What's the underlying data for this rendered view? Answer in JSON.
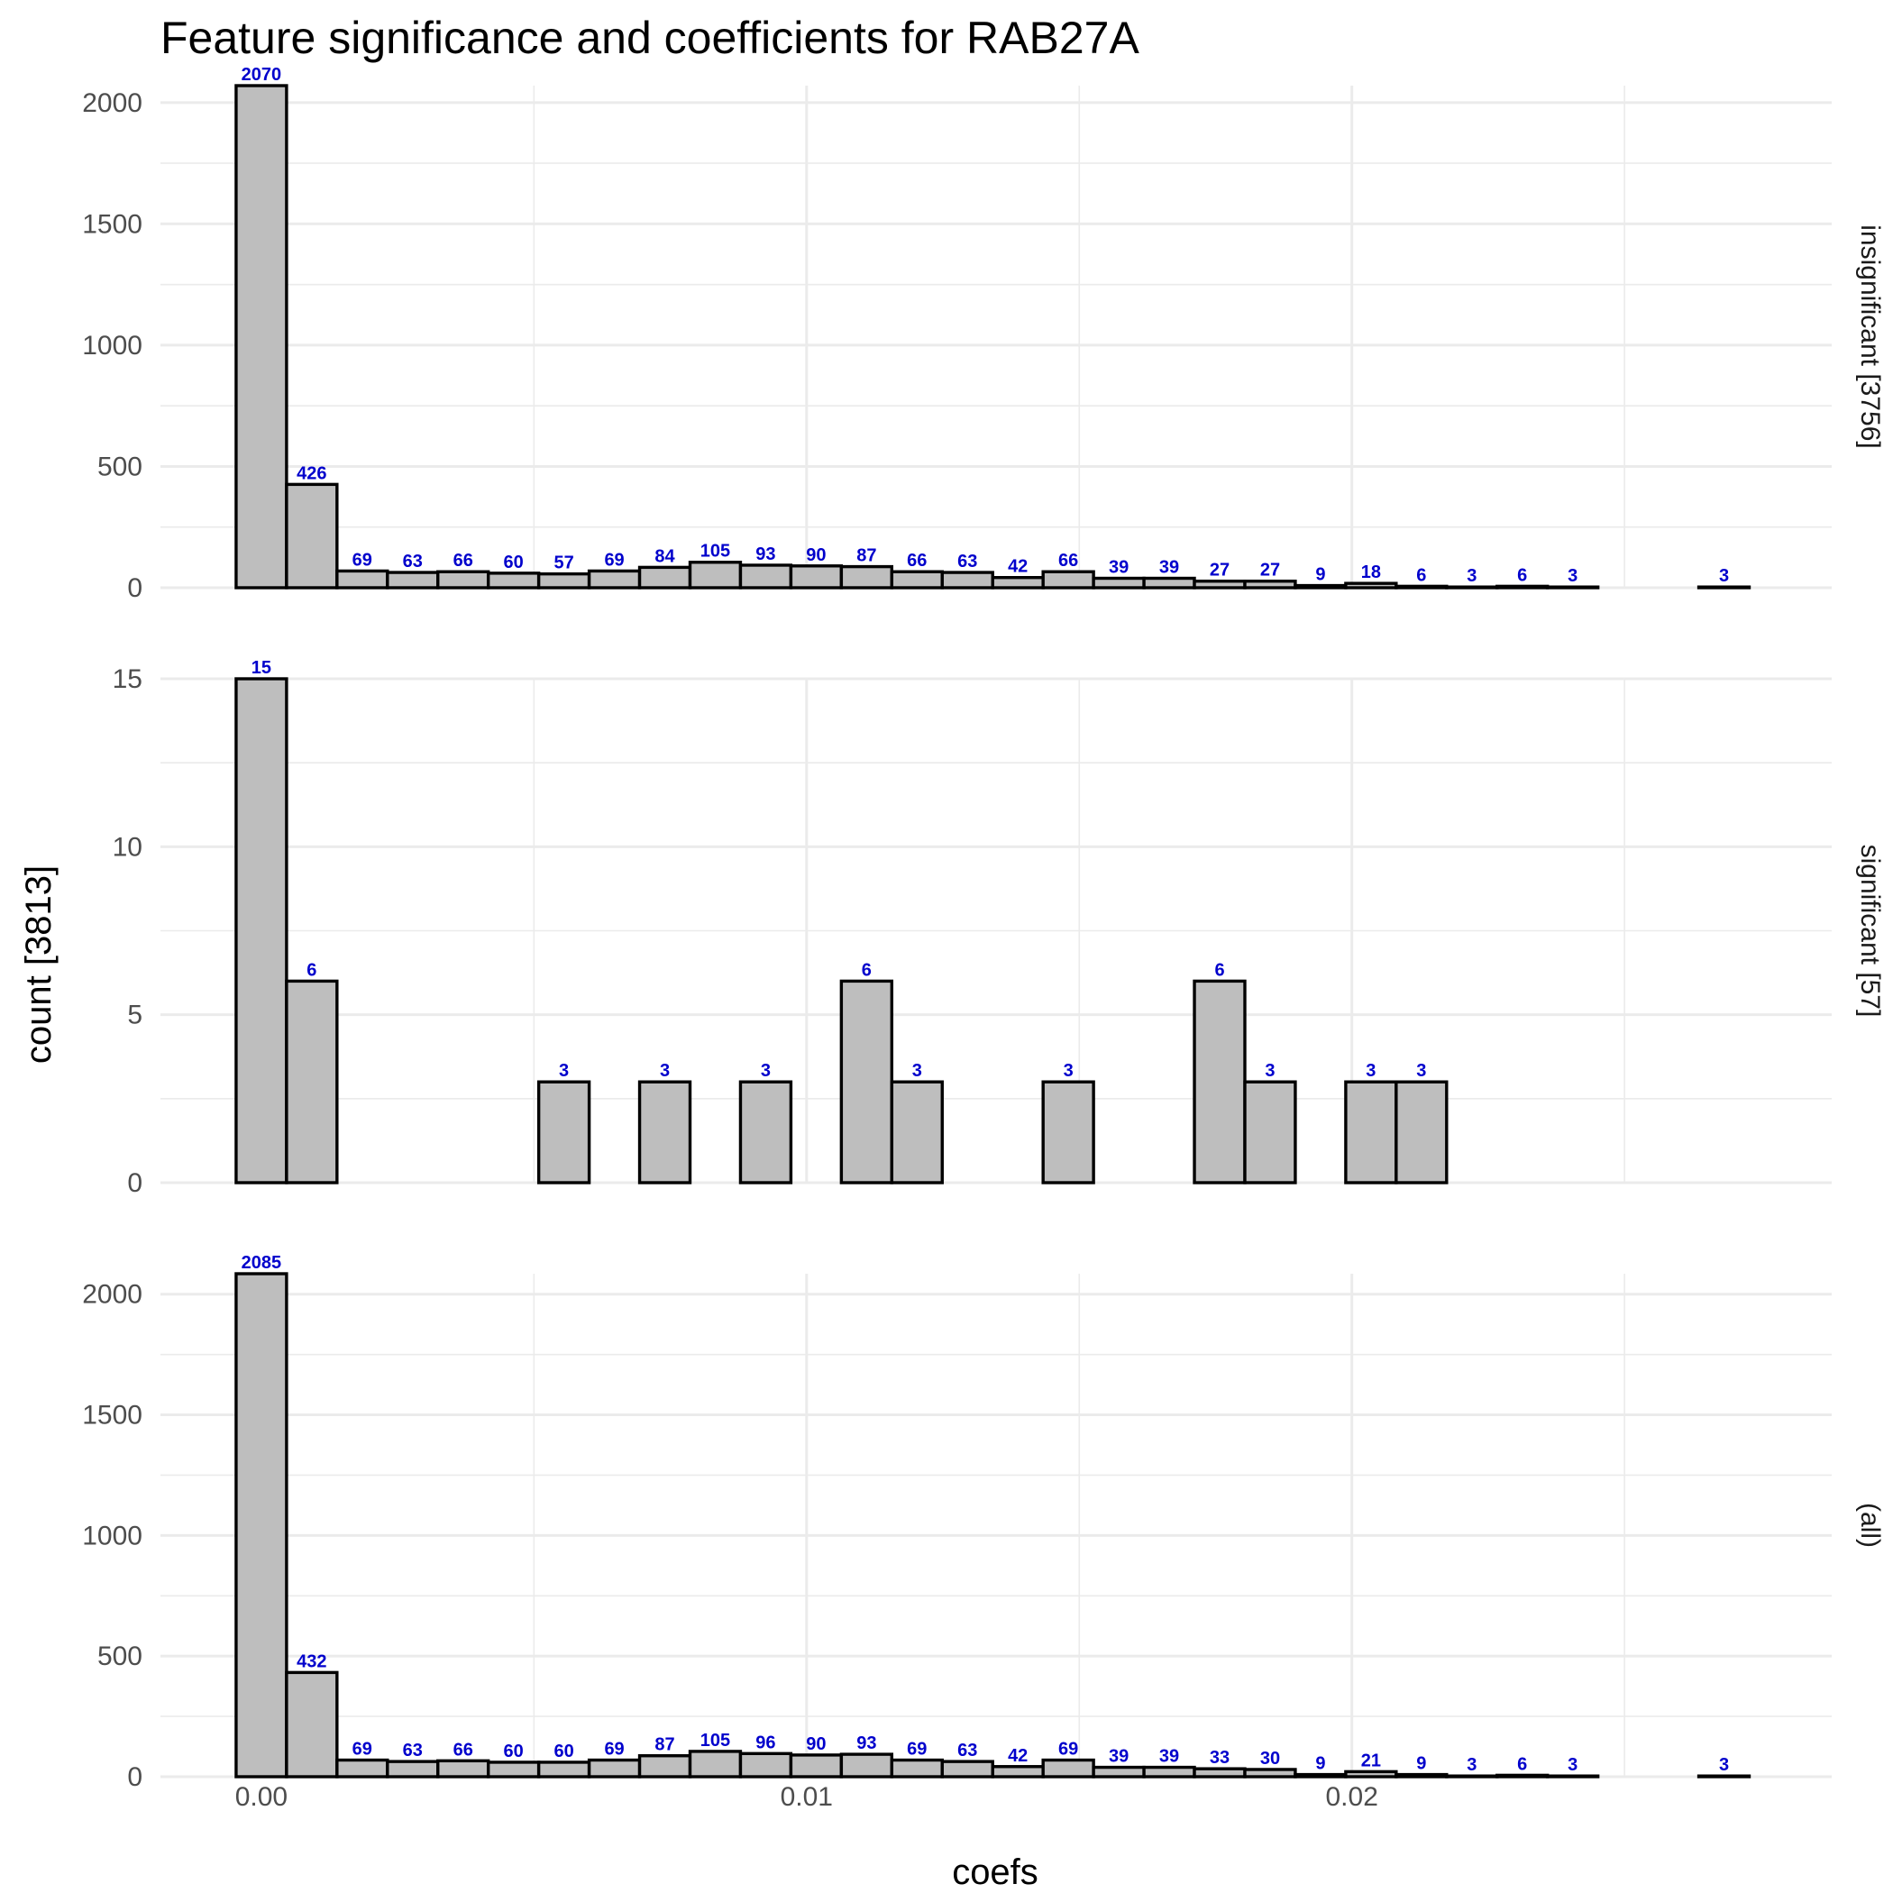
{
  "chart_data": {
    "type": "bar",
    "title": "Feature significance and coefficients for RAB27A",
    "xlabel": "coefs",
    "ylabel": "count [3813]",
    "x_ticks": [
      "0.00",
      "0.01",
      "0.02"
    ],
    "x_tick_values": [
      0.0,
      0.01,
      0.02
    ],
    "bin_width": 0.000925,
    "x_range": [
      -0.00185,
      0.0288
    ],
    "grid": true,
    "panels": [
      {
        "label": "insignificant [3756]",
        "ylim": [
          0,
          2070
        ],
        "y_ticks": [
          0,
          500,
          1000,
          1500,
          2000
        ],
        "bin_centers": [
          0.0,
          0.000925,
          0.00185,
          0.002775,
          0.0037,
          0.004625,
          0.00555,
          0.006475,
          0.0074,
          0.008325,
          0.00925,
          0.010175,
          0.0111,
          0.012025,
          0.01295,
          0.013875,
          0.0148,
          0.015725,
          0.01665,
          0.017575,
          0.0185,
          0.019425,
          0.02035,
          0.021275,
          0.0222,
          0.023125,
          0.02405,
          0.024975,
          0.0259,
          0.026825
        ],
        "values": [
          2070,
          426,
          69,
          63,
          66,
          60,
          57,
          69,
          84,
          105,
          93,
          90,
          87,
          66,
          63,
          42,
          66,
          39,
          39,
          27,
          27,
          9,
          18,
          6,
          3,
          6,
          3,
          0,
          0,
          3
        ],
        "labels": [
          "2070",
          "426",
          "69",
          "63",
          "66",
          "60",
          "57",
          "69",
          "84",
          "105",
          "93",
          "90",
          "87",
          "66",
          "63",
          "42",
          "66",
          "39",
          "39",
          "27",
          "27",
          "9",
          "18",
          "6",
          "3",
          "6",
          "3",
          "",
          "",
          "3"
        ]
      },
      {
        "label": "significant [57]",
        "ylim": [
          0,
          15
        ],
        "y_ticks": [
          0,
          5,
          10,
          15
        ],
        "bin_centers": [
          0.0,
          0.000925,
          0.00185,
          0.002775,
          0.0037,
          0.004625,
          0.00555,
          0.006475,
          0.0074,
          0.008325,
          0.00925,
          0.010175,
          0.0111,
          0.012025,
          0.01295,
          0.013875,
          0.0148,
          0.015725,
          0.01665,
          0.017575,
          0.0185,
          0.019425,
          0.02035,
          0.021275,
          0.0222,
          0.023125,
          0.02405,
          0.024975,
          0.0259,
          0.026825
        ],
        "values": [
          15,
          6,
          0,
          0,
          0,
          0,
          3,
          0,
          3,
          0,
          3,
          0,
          6,
          3,
          0,
          0,
          3,
          0,
          0,
          6,
          3,
          0,
          3,
          3,
          0,
          0,
          0,
          0,
          0,
          0
        ],
        "labels": [
          "15",
          "6",
          "",
          "",
          "",
          "",
          "3",
          "",
          "3",
          "",
          "3",
          "",
          "6",
          "3",
          "",
          "",
          "3",
          "",
          "",
          "6",
          "3",
          "",
          "3",
          "3",
          "",
          "",
          "",
          "",
          "",
          ""
        ]
      },
      {
        "label": "(all)",
        "ylim": [
          0,
          2085
        ],
        "y_ticks": [
          0,
          500,
          1000,
          1500,
          2000
        ],
        "bin_centers": [
          0.0,
          0.000925,
          0.00185,
          0.002775,
          0.0037,
          0.004625,
          0.00555,
          0.006475,
          0.0074,
          0.008325,
          0.00925,
          0.010175,
          0.0111,
          0.012025,
          0.01295,
          0.013875,
          0.0148,
          0.015725,
          0.01665,
          0.017575,
          0.0185,
          0.019425,
          0.02035,
          0.021275,
          0.0222,
          0.023125,
          0.02405,
          0.024975,
          0.0259,
          0.026825
        ],
        "values": [
          2085,
          432,
          69,
          63,
          66,
          60,
          60,
          69,
          87,
          105,
          96,
          90,
          93,
          69,
          63,
          42,
          69,
          39,
          39,
          33,
          30,
          9,
          21,
          9,
          3,
          6,
          3,
          0,
          0,
          3
        ],
        "labels": [
          "2085",
          "432",
          "69",
          "63",
          "66",
          "60",
          "60",
          "69",
          "87",
          "105",
          "96",
          "90",
          "93",
          "69",
          "63",
          "42",
          "69",
          "39",
          "39",
          "33",
          "30",
          "9",
          "21",
          "9",
          "3",
          "6",
          "3",
          "",
          "",
          "3"
        ]
      }
    ]
  }
}
